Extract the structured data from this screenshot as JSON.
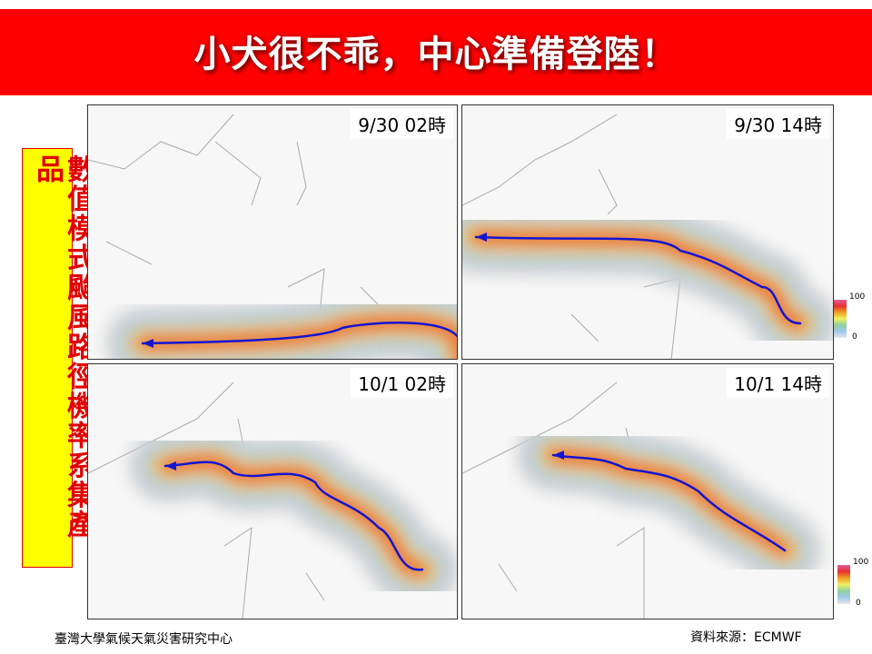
{
  "header": {
    "title": "小犬很不乖，中心準備登陸！"
  },
  "side_label": "數值模式颱風路徑機率系集產品",
  "panels": [
    {
      "time": "9/30 02時"
    },
    {
      "time": "9/30 14時"
    },
    {
      "time": "10/1 02時"
    },
    {
      "time": "10/1 14時"
    }
  ],
  "colorbars": [
    {
      "max": 100,
      "min": 0
    },
    {
      "max": 100,
      "min": 0
    }
  ],
  "footer": {
    "left": "臺灣大學氣候天氣災害研究中心",
    "right": "資料來源：ECMWF"
  }
}
